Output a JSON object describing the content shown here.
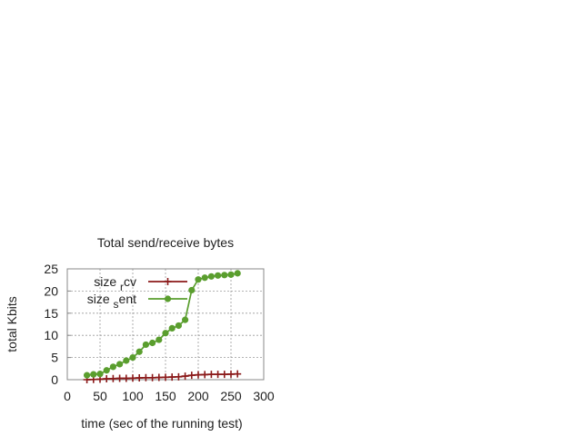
{
  "chart_data": {
    "type": "line",
    "title": "Total send/receive bytes",
    "xlabel": "time (sec of the running test)",
    "ylabel": "total Kbits",
    "xlim": [
      0,
      300
    ],
    "ylim": [
      0,
      25
    ],
    "xticks": [
      0,
      50,
      100,
      150,
      200,
      250,
      300
    ],
    "yticks": [
      0,
      5,
      10,
      15,
      20,
      25
    ],
    "grid": true,
    "legend_position": "top-left",
    "series": [
      {
        "name_parts": [
          "size",
          "r",
          "cv"
        ],
        "color": "#8b1a1a",
        "marker": "plus",
        "x": [
          30,
          40,
          50,
          60,
          70,
          80,
          90,
          100,
          110,
          120,
          130,
          140,
          150,
          160,
          170,
          180,
          190,
          200,
          210,
          220,
          230,
          240,
          250,
          260
        ],
        "y": [
          0.0,
          0.05,
          0.1,
          0.2,
          0.25,
          0.3,
          0.3,
          0.35,
          0.4,
          0.45,
          0.45,
          0.5,
          0.55,
          0.6,
          0.65,
          0.8,
          1.0,
          1.1,
          1.15,
          1.2,
          1.2,
          1.2,
          1.25,
          1.3
        ]
      },
      {
        "name_parts": [
          "size",
          "s",
          "ent"
        ],
        "color": "#5a9e2e",
        "marker": "dot",
        "x": [
          30,
          40,
          50,
          60,
          70,
          80,
          90,
          100,
          110,
          120,
          130,
          140,
          150,
          160,
          170,
          180,
          190,
          200,
          210,
          220,
          230,
          240,
          250,
          260
        ],
        "y": [
          1.0,
          1.2,
          1.3,
          2.1,
          2.9,
          3.5,
          4.3,
          5.0,
          6.3,
          7.9,
          8.3,
          9.0,
          10.5,
          11.6,
          12.2,
          13.5,
          20.2,
          22.6,
          23.0,
          23.3,
          23.5,
          23.6,
          23.7,
          24.0
        ]
      }
    ]
  }
}
